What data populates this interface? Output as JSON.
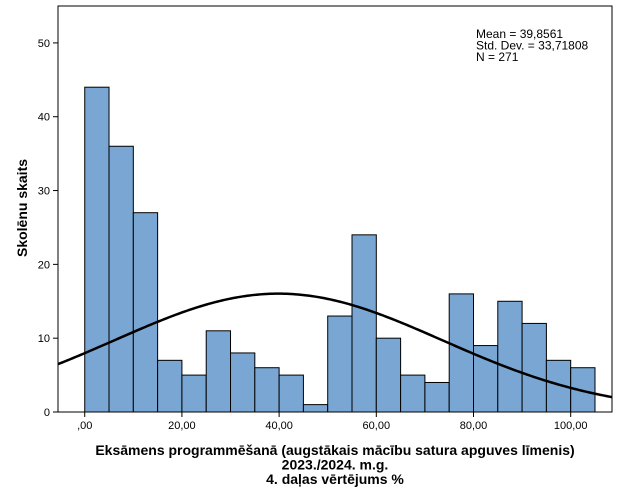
{
  "chart_data": {
    "type": "bar",
    "subtype": "histogram",
    "bin_width": 5,
    "bins": [
      {
        "start": 0,
        "count": 44
      },
      {
        "start": 5,
        "count": 36
      },
      {
        "start": 10,
        "count": 27
      },
      {
        "start": 15,
        "count": 7
      },
      {
        "start": 20,
        "count": 5
      },
      {
        "start": 25,
        "count": 11
      },
      {
        "start": 30,
        "count": 8
      },
      {
        "start": 35,
        "count": 6
      },
      {
        "start": 40,
        "count": 5
      },
      {
        "start": 45,
        "count": 1
      },
      {
        "start": 50,
        "count": 13
      },
      {
        "start": 55,
        "count": 24
      },
      {
        "start": 60,
        "count": 10
      },
      {
        "start": 65,
        "count": 5
      },
      {
        "start": 70,
        "count": 4
      },
      {
        "start": 75,
        "count": 16
      },
      {
        "start": 80,
        "count": 9
      },
      {
        "start": 85,
        "count": 15
      },
      {
        "start": 90,
        "count": 12
      },
      {
        "start": 95,
        "count": 7
      },
      {
        "start": 100,
        "count": 6
      }
    ],
    "normal_curve": {
      "mean": 39.8561,
      "std_dev": 33.71808,
      "n": 271
    },
    "stats_lines": [
      "Mean = 39,8561",
      "Std. Dev. = 33,71808",
      "N = 271"
    ],
    "xlabel_lines": [
      "Eksāmens programmēšanā (augstākais mācību satura apguves līmenis)",
      "2023./2024. m.g.",
      "4. daļas vērtējums %"
    ],
    "ylabel": "Skolēnu skaits",
    "xlim": [
      -5.5,
      108.5
    ],
    "ylim": [
      0,
      55
    ],
    "x_ticks": [
      0,
      20,
      40,
      60,
      80,
      100
    ],
    "x_tick_labels": [
      ",00",
      "20,00",
      "40,00",
      "60,00",
      "80,00",
      "100,00"
    ],
    "y_ticks": [
      0,
      10,
      20,
      30,
      40,
      50
    ],
    "y_tick_labels": [
      "0",
      "10",
      "20",
      "30",
      "40",
      "50"
    ],
    "grid": false,
    "bar_color": "#7aa6d4",
    "bar_edge_color": "#000000",
    "curve_color": "#000000"
  }
}
